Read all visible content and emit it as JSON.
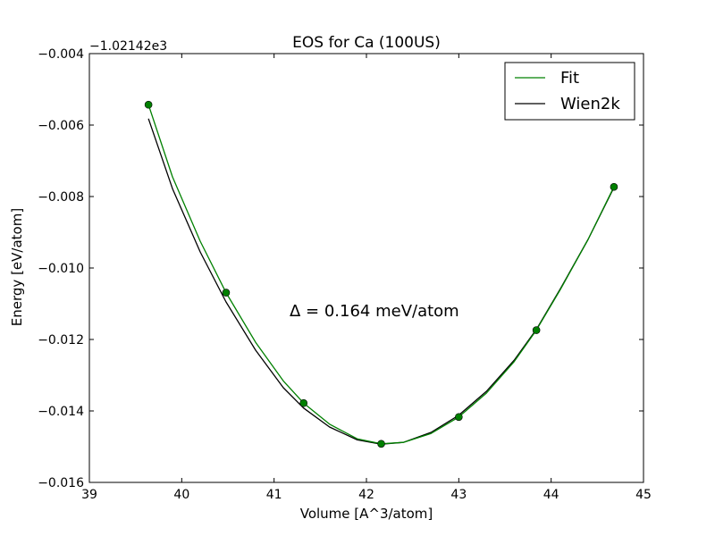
{
  "chart_data": {
    "type": "line",
    "title": "EOS for Ca (100US)",
    "xlabel": "Volume [A^3/atom]",
    "ylabel": "Energy [eV/atom]",
    "offset_label": "−1.02142e3",
    "annotation": "Δ = 0.164 meV/atom",
    "xlim": [
      39,
      45
    ],
    "ylim": [
      -0.016,
      -0.004
    ],
    "xticks": [
      39,
      40,
      41,
      42,
      43,
      44,
      45
    ],
    "yticks": [
      -0.016,
      -0.014,
      -0.012,
      -0.01,
      -0.008,
      -0.006,
      -0.004
    ],
    "xtick_labels": [
      "39",
      "40",
      "41",
      "42",
      "43",
      "44",
      "45"
    ],
    "ytick_labels": [
      "−0.016",
      "−0.014",
      "−0.012",
      "−0.010",
      "−0.008",
      "−0.006",
      "−0.004"
    ],
    "legend_position": "top-right",
    "grid": false,
    "points": {
      "color": "#008000",
      "x": [
        39.64,
        40.48,
        41.32,
        42.16,
        43.0,
        43.84,
        44.68
      ],
      "y": [
        -0.00543,
        -0.01069,
        -0.01378,
        -0.01492,
        -0.01417,
        -0.01174,
        -0.00773
      ]
    },
    "series": [
      {
        "name": "Fit",
        "color": "#008000",
        "x": [
          39.64,
          39.9,
          40.2,
          40.48,
          40.8,
          41.1,
          41.32,
          41.6,
          41.9,
          42.16,
          42.4,
          42.7,
          43.0,
          43.3,
          43.6,
          43.84,
          44.1,
          44.4,
          44.68
        ],
        "y": [
          -0.00543,
          -0.00745,
          -0.00925,
          -0.01069,
          -0.01208,
          -0.01316,
          -0.01378,
          -0.01437,
          -0.01478,
          -0.01492,
          -0.01488,
          -0.01463,
          -0.01417,
          -0.0135,
          -0.01262,
          -0.01174,
          -0.0106,
          -0.0092,
          -0.00773
        ]
      },
      {
        "name": "Wien2k",
        "color": "#000000",
        "x": [
          39.64,
          39.9,
          40.2,
          40.48,
          40.8,
          41.1,
          41.32,
          41.6,
          41.9,
          42.16,
          42.4,
          42.7,
          43.0,
          43.3,
          43.6,
          43.84,
          44.1,
          44.4,
          44.68
        ],
        "y": [
          -0.00582,
          -0.00778,
          -0.00955,
          -0.01095,
          -0.0123,
          -0.01335,
          -0.01392,
          -0.01445,
          -0.01481,
          -0.01493,
          -0.01488,
          -0.0146,
          -0.01412,
          -0.01345,
          -0.01258,
          -0.01172,
          -0.01058,
          -0.0092,
          -0.00775
        ]
      }
    ]
  }
}
